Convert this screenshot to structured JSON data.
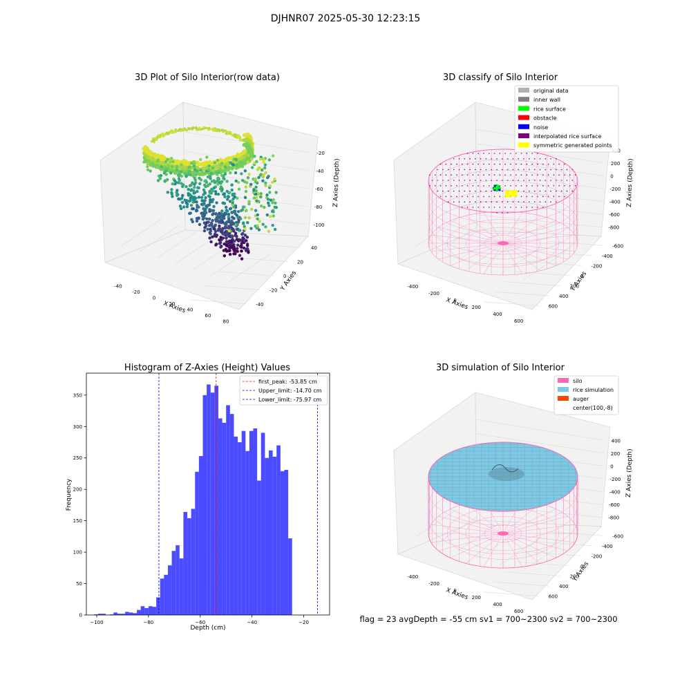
{
  "figure_title": "DJHNR07 2025-05-30 12:23:15",
  "footer_text": "flag = 23  avgDepth = -55 cm   sv1 = 700~2300  sv2 = 700~2300",
  "colors": {
    "hist_bar": "#4b4bff",
    "peak_line": "#ff0000",
    "limit_line": "#0000cc",
    "silo": "#ff69b4",
    "rice": "#7ec8e3",
    "auger": "#ff4500"
  },
  "chart_data": [
    {
      "type": "scatter",
      "title": "3D Plot of Silo Interior(row data)",
      "xlabel": "X Axies",
      "ylabel": "Y Axies",
      "zlabel": "Z Axies (Depth)",
      "x_ticks": [
        "-40",
        "-20",
        "0",
        "20",
        "40",
        "60",
        "80"
      ],
      "y_ticks": [
        "-40",
        "-20",
        "0",
        "20",
        "40"
      ],
      "z_ticks": [
        "-20",
        "-40",
        "-60",
        "-80",
        "-100"
      ],
      "xlim": [
        -50,
        80
      ],
      "ylim": [
        -45,
        45
      ],
      "zlim": [
        -110,
        -15
      ],
      "colormap": "viridis"
    },
    {
      "type": "scatter",
      "title": "3D classify of Silo Interior",
      "xlabel": "X Axies",
      "ylabel": "Y Axies",
      "zlabel": "Z Axies (Depth)",
      "x_ticks": [
        "-400",
        "-200",
        "0",
        "200",
        "400",
        "600"
      ],
      "y_ticks": [
        "600",
        "400",
        "200",
        "0",
        "-200",
        "-400",
        "-600"
      ],
      "z_ticks": [
        "400",
        "200",
        "0",
        "-200",
        "-400",
        "-600",
        "-800"
      ],
      "legend_position": "top-right",
      "legend": [
        {
          "label": "original data",
          "color": "#b0b0b0"
        },
        {
          "label": "inner wall",
          "color": "#808080"
        },
        {
          "label": "rice surface",
          "color": "#00ff00"
        },
        {
          "label": "obstacle",
          "color": "#ff0000"
        },
        {
          "label": "noise",
          "color": "#0000ff"
        },
        {
          "label": "interpolated rice surface",
          "color": "#800080"
        },
        {
          "label": "symmetric generated points",
          "color": "#ffff00"
        }
      ]
    },
    {
      "type": "bar",
      "title": "Histogram of Z-Axies (Height) Values",
      "xlabel": "Depth (cm)",
      "ylabel": "Frequency",
      "xlim": [
        -104,
        -10
      ],
      "ylim": [
        0,
        385
      ],
      "x_ticks": [
        -100,
        -80,
        -60,
        -40,
        -20
      ],
      "y_ticks": [
        0,
        50,
        100,
        150,
        200,
        250,
        300,
        350
      ],
      "bin_start": -101,
      "bin_width": 1.5,
      "values": [
        1,
        2,
        2,
        0,
        1,
        4,
        2,
        2,
        5,
        4,
        3,
        8,
        14,
        11,
        14,
        13,
        28,
        58,
        64,
        79,
        102,
        111,
        90,
        164,
        154,
        169,
        228,
        253,
        350,
        367,
        354,
        365,
        313,
        306,
        334,
        320,
        284,
        275,
        293,
        261,
        293,
        297,
        214,
        290,
        250,
        262,
        252,
        270,
        229,
        231,
        122
      ],
      "vlines": [
        {
          "label": "first_peak: -53.85 cm",
          "x": -53.85,
          "color": "#ff0000"
        },
        {
          "label": "Upper_limit: -14.70 cm",
          "x": -14.7,
          "color": "#0000cc"
        },
        {
          "label": "Lower_limit: -75.97 cm",
          "x": -75.97,
          "color": "#0000cc"
        }
      ],
      "legend_position": "top-right"
    },
    {
      "type": "surface",
      "title": "3D simulation of Silo Interior",
      "xlabel": "X Axies",
      "ylabel": "Y Axies",
      "zlabel": "Z Axies (Depth)",
      "x_ticks": [
        "-400",
        "-200",
        "0",
        "200",
        "400",
        "600"
      ],
      "y_ticks": [
        "600",
        "400",
        "200",
        "0",
        "-200",
        "-400",
        "-600"
      ],
      "z_ticks": [
        "400",
        "200",
        "0",
        "-200",
        "-400",
        "-600",
        "-800"
      ],
      "legend_position": "top-right",
      "legend": [
        {
          "label": "silo",
          "color": "#ff69b4"
        },
        {
          "label": "rice simulation",
          "color": "#7ec8e3"
        },
        {
          "label": "auger",
          "color": "#ff4500"
        },
        {
          "label": "center(100,-8)",
          "color": ""
        }
      ]
    }
  ]
}
